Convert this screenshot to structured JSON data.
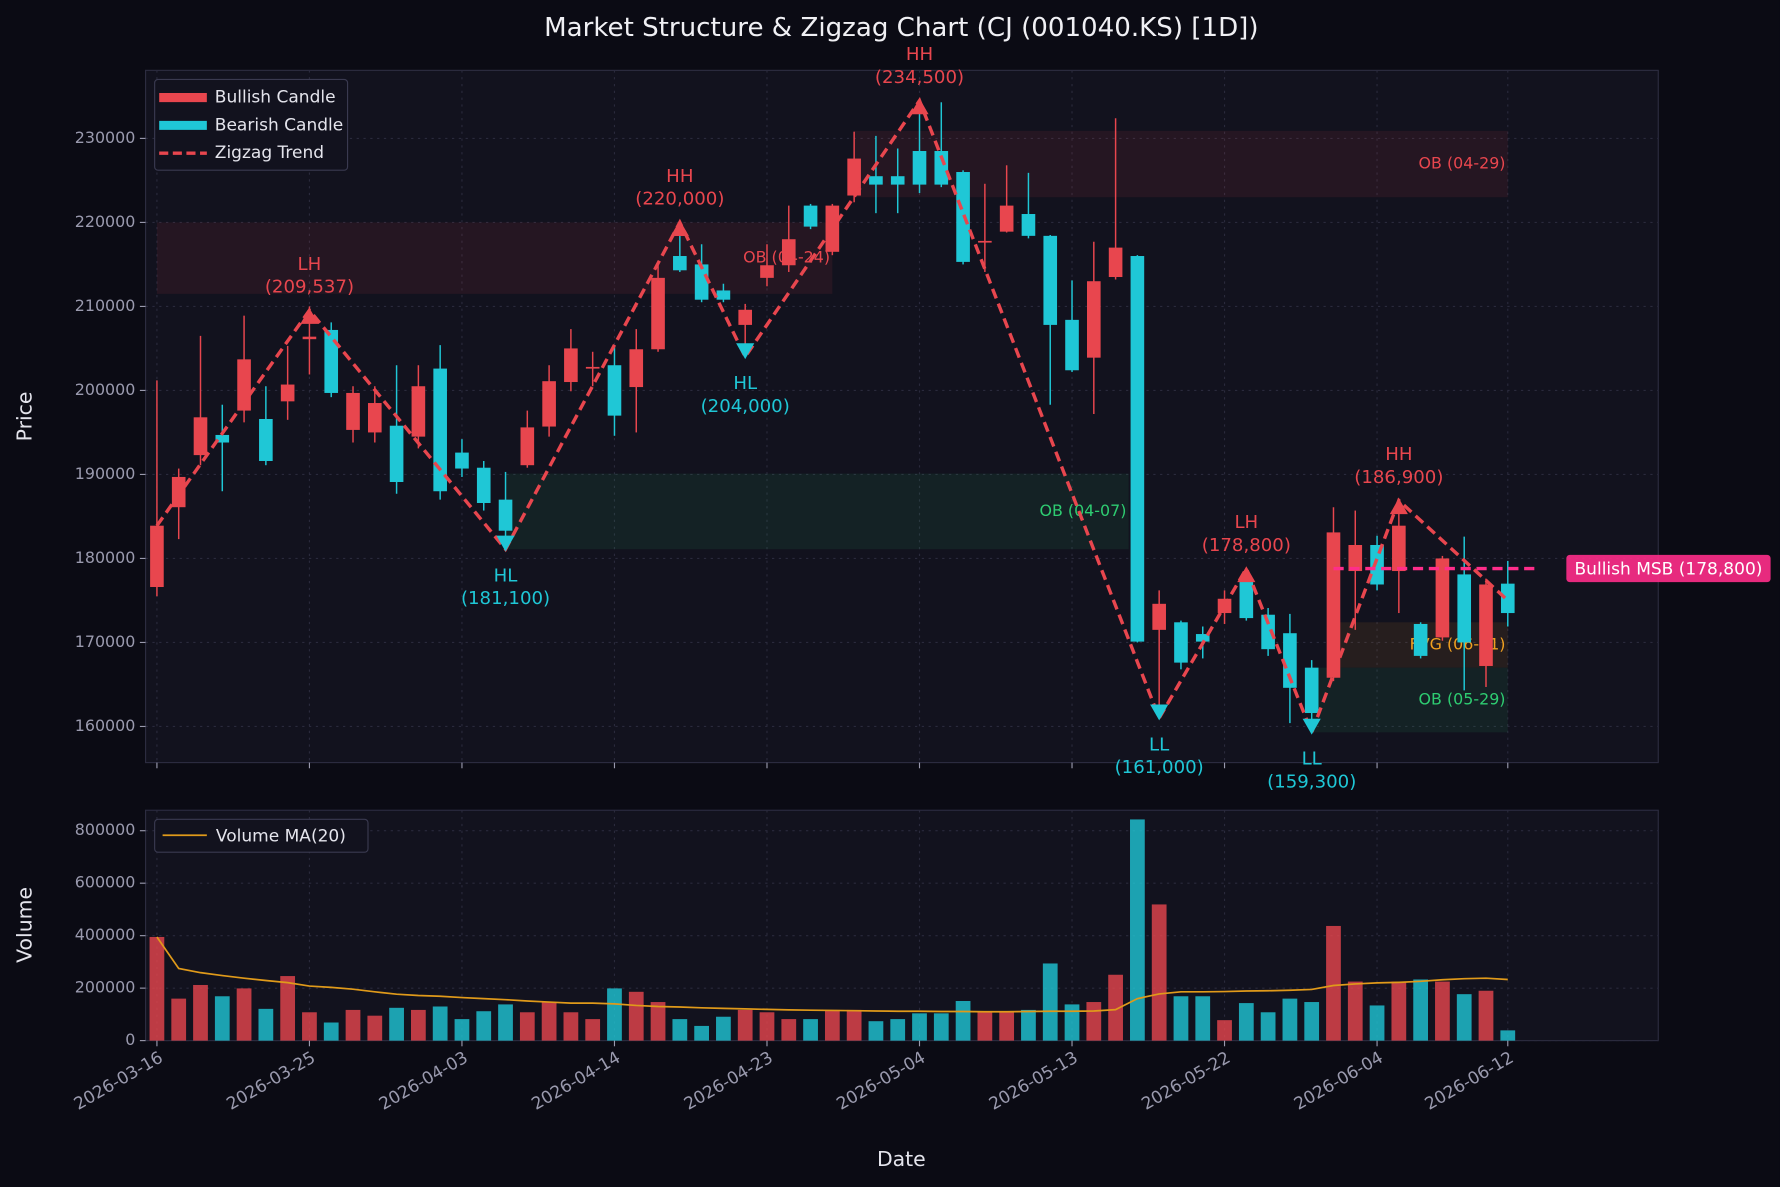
{
  "chart_data": [
    {
      "type": "candlestick",
      "title": "Market Structure & Zigzag Chart (CJ (001040.KS) [1D])",
      "y_label": "Price",
      "up_name": "Bullish Candle",
      "up_color": "#e8464e",
      "down_name": "Bearish Candle",
      "down_color": "#1fc7d6",
      "open": [
        176600,
        186100,
        192300,
        194700,
        197600,
        196600,
        198700,
        206100,
        207200,
        195300,
        195000,
        195800,
        194500,
        202600,
        192600,
        190800,
        187000,
        191100,
        195700,
        201000,
        202600,
        203000,
        200400,
        204900,
        216000,
        215000,
        211900,
        207800,
        213400,
        214900,
        222000,
        216500,
        223200,
        225500,
        225500,
        228500,
        228500,
        226000,
        217600,
        218900,
        221000,
        218400,
        208400,
        203900,
        213500,
        216000,
        171500,
        172400,
        171000,
        173500,
        177300,
        173300,
        171100,
        167000,
        165800,
        178500,
        181600,
        178500,
        172200,
        170600,
        178100,
        167200,
        177000
      ],
      "high": [
        201200,
        190700,
        206500,
        198300,
        208900,
        200500,
        205300,
        210000,
        208100,
        200500,
        200500,
        203000,
        203000,
        205400,
        194200,
        191600,
        190300,
        197600,
        203000,
        207300,
        204600,
        205300,
        207300,
        215000,
        220000,
        217400,
        212700,
        210300,
        217400,
        222000,
        222200,
        222200,
        230800,
        230300,
        228800,
        234500,
        234300,
        226200,
        224600,
        226800,
        225900,
        218500,
        213100,
        217700,
        232400,
        216100,
        176200,
        172600,
        171900,
        176200,
        178800,
        174100,
        173400,
        167900,
        186100,
        185700,
        182700,
        186900,
        172400,
        180300,
        182600,
        177600,
        179700
      ],
      "low": [
        175500,
        182300,
        191100,
        188000,
        196200,
        191100,
        196500,
        201900,
        199200,
        193800,
        193800,
        187700,
        193100,
        187000,
        189700,
        185700,
        181100,
        190800,
        194500,
        199900,
        200500,
        194600,
        195000,
        204600,
        214100,
        210500,
        210500,
        204000,
        212400,
        214100,
        219200,
        216100,
        222400,
        221100,
        221100,
        223500,
        224200,
        215000,
        214100,
        218800,
        218100,
        198300,
        202200,
        197200,
        213200,
        170000,
        161000,
        166800,
        168100,
        172200,
        172600,
        168400,
        160400,
        159300,
        165400,
        171500,
        176200,
        173500,
        168100,
        170200,
        164300,
        164700,
        171900
      ],
      "close": [
        183900,
        189700,
        196800,
        193800,
        203700,
        191600,
        200700,
        206400,
        199700,
        199700,
        198500,
        189100,
        200500,
        188000,
        190700,
        186600,
        183300,
        195600,
        201100,
        205000,
        202800,
        197000,
        204900,
        213400,
        214300,
        210800,
        210800,
        209600,
        214900,
        218000,
        219500,
        222000,
        227600,
        224500,
        224500,
        224500,
        224500,
        215300,
        217800,
        222000,
        218400,
        207800,
        202400,
        213000,
        217000,
        170100,
        174600,
        167600,
        170100,
        175200,
        172900,
        169200,
        164600,
        161600,
        183100,
        181600,
        176900,
        183900,
        168400,
        180000,
        170000,
        176900,
        173500
      ],
      "zigzag": {
        "name": "Zigzag Trend",
        "color": "#e8464e",
        "x": [
          0,
          7,
          16,
          24,
          27,
          35,
          46,
          50,
          53,
          57,
          62
        ],
        "values": [
          183900,
          209537,
          181100,
          220000,
          204000,
          234500,
          161000,
          178800,
          159300,
          186900,
          175000
        ],
        "labels": [
          null,
          "LH",
          "HL",
          "HH",
          "HL",
          "HH",
          "LL",
          "LH",
          "LL",
          "HH",
          null
        ],
        "value_labels": [
          null,
          "(209,537)",
          "(181,100)",
          "(220,000)",
          "(204,000)",
          "(234,500)",
          "(161,000)",
          "(178,800)",
          "(159,300)",
          "(186,900)",
          null
        ]
      },
      "zones": [
        {
          "label": "OB (04-24)",
          "color": "#e8464e",
          "range": [
            211500,
            220000
          ],
          "x": [
            0,
            31
          ]
        },
        {
          "label": "OB (04-29)",
          "color": "#e8464e",
          "range": [
            223000,
            230900
          ],
          "x": [
            32,
            62
          ]
        },
        {
          "label": "OB (04-07)",
          "color": "#2ecc71",
          "range": [
            181100,
            190100
          ],
          "x": [
            16,
            44.6
          ]
        },
        {
          "label": "FVG (06-01)",
          "color": "#f0a020",
          "range": [
            167000,
            172400
          ],
          "x": [
            54,
            62
          ]
        },
        {
          "label": "OB (05-29)",
          "color": "#2ecc71",
          "range": [
            159300,
            167000
          ],
          "x": [
            53,
            62
          ]
        }
      ],
      "msb": {
        "label": "Bullish MSB (178,800)",
        "value": 178800,
        "x": [
          54,
          63.4
        ],
        "color": "#ff2d8a"
      },
      "ylim": [
        155700,
        238100
      ],
      "yticks": [
        160000,
        170000,
        180000,
        190000,
        200000,
        210000,
        220000,
        230000
      ],
      "grid": true,
      "legend": "upper left"
    },
    {
      "type": "bar",
      "y_label": "Volume",
      "x_label": "Date",
      "categories": [
        "2026-03-16",
        null,
        null,
        null,
        null,
        null,
        null,
        "2026-03-25",
        null,
        null,
        null,
        null,
        null,
        null,
        "2026-04-03",
        null,
        null,
        null,
        null,
        null,
        null,
        "2026-04-14",
        null,
        null,
        null,
        null,
        null,
        null,
        "2026-04-23",
        null,
        null,
        null,
        null,
        null,
        null,
        "2026-05-04",
        null,
        null,
        null,
        null,
        null,
        null,
        "2026-05-13",
        null,
        null,
        null,
        null,
        null,
        null,
        "2026-05-22",
        null,
        null,
        null,
        null,
        null,
        null,
        "2026-06-04",
        null,
        null,
        null,
        null,
        null,
        "2026-06-12"
      ],
      "values": [
        395000,
        160000,
        212000,
        169000,
        199000,
        121000,
        246000,
        108000,
        69000,
        117000,
        95000,
        125000,
        117000,
        130000,
        82000,
        112000,
        138000,
        108000,
        147000,
        108000,
        82000,
        199000,
        186000,
        147000,
        82000,
        56000,
        91000,
        117000,
        108000,
        82000,
        82000,
        117000,
        117000,
        74000,
        82000,
        104000,
        104000,
        151000,
        108000,
        108000,
        117000,
        294000,
        138000,
        147000,
        251000,
        843000,
        519000,
        169000,
        169000,
        78000,
        143000,
        108000,
        160000,
        147000,
        437000,
        225000,
        134000,
        225000,
        233000,
        225000,
        177000,
        190000,
        39000
      ],
      "ma": {
        "name": "Volume MA(20)",
        "color": "#e09a1a",
        "values": [
          395000,
          275000,
          259000,
          248000,
          238000,
          229000,
          221000,
          208000,
          203000,
          196000,
          186000,
          177000,
          172000,
          169000,
          164000,
          160000,
          156000,
          151000,
          147000,
          143000,
          143000,
          140000,
          134000,
          130000,
          128000,
          125000,
          123000,
          121000,
          119000,
          117000,
          116000,
          115000,
          114000,
          113000,
          112000,
          112000,
          111000,
          111000,
          110000,
          110000,
          111000,
          112000,
          112000,
          113000,
          118000,
          160000,
          178000,
          186000,
          186000,
          187000,
          189000,
          190000,
          192000,
          195000,
          210000,
          216000,
          220000,
          222000,
          226000,
          232000,
          236000,
          238000,
          233000
        ]
      },
      "ylim": [
        0,
        878000
      ],
      "yticks": [
        0,
        200000,
        400000,
        600000,
        800000
      ],
      "grid": true,
      "legend": "upper left"
    }
  ]
}
